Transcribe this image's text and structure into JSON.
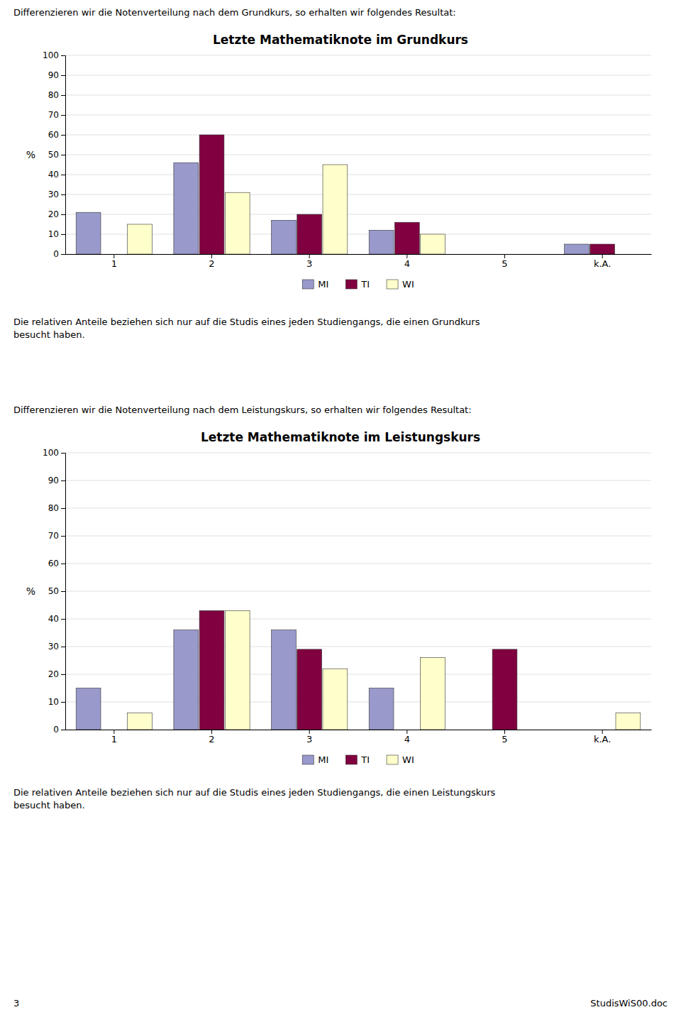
{
  "chart_data": [
    {
      "type": "bar",
      "title": "Letzte Mathematiknote im Grundkurs",
      "categories": [
        "1",
        "2",
        "3",
        "4",
        "5",
        "k.A."
      ],
      "series": [
        {
          "name": "MI",
          "color": "#9999CC",
          "values": [
            21,
            46,
            17,
            12,
            0,
            5
          ]
        },
        {
          "name": "TI",
          "color": "#800040",
          "values": [
            0,
            60,
            20,
            16,
            0,
            5
          ]
        },
        {
          "name": "WI",
          "color": "#FFFFCC",
          "values": [
            15,
            31,
            45,
            10,
            0,
            0
          ]
        }
      ],
      "ylabel": "%",
      "ylim": [
        0,
        100
      ],
      "yticks": [
        0,
        10,
        20,
        30,
        40,
        50,
        60,
        70,
        80,
        90,
        100
      ],
      "grid": true,
      "legend": "bottom",
      "annotations": [
        "Differenzieren wir die Notenverteilung nach dem Grundkurs, so erhalten wir folgendes Resultat:",
        "Die relativen Anteile beziehen sich nur auf die Studis eines jeden Studiengangs, die einen Grundkurs\nbesucht haben."
      ]
    },
    {
      "type": "bar",
      "title": "Letzte Mathematiknote im Leistungskurs",
      "categories": [
        "1",
        "2",
        "3",
        "4",
        "5",
        "k.A."
      ],
      "series": [
        {
          "name": "MI",
          "color": "#9999CC",
          "values": [
            15,
            36,
            36,
            15,
            0,
            0
          ]
        },
        {
          "name": "TI",
          "color": "#800040",
          "values": [
            0,
            43,
            29,
            0,
            29,
            0
          ]
        },
        {
          "name": "WI",
          "color": "#FFFFCC",
          "values": [
            6,
            43,
            22,
            26,
            0,
            6
          ]
        }
      ],
      "ylabel": "%",
      "ylim": [
        0,
        100
      ],
      "yticks": [
        0,
        10,
        20,
        30,
        40,
        50,
        60,
        70,
        80,
        90,
        100
      ],
      "grid": true,
      "legend": "bottom",
      "annotations": [
        "Differenzieren wir die Notenverteilung nach dem Leistungskurs, so erhalten wir folgendes Resultat:",
        "Die relativen Anteile beziehen sich nur auf die Studis eines jeden Studiengangs, die einen Leistungskurs\nbesucht haben.",
        "3",
        "StudisWiS00.doc"
      ]
    }
  ]
}
